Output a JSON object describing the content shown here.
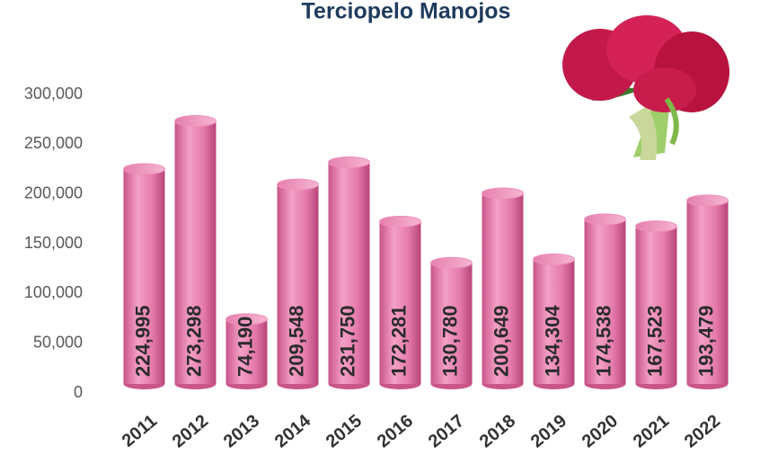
{
  "chart_data": {
    "type": "bar",
    "title": "Terciopelo Manojos",
    "categories": [
      "2011",
      "2012",
      "2013",
      "2014",
      "2015",
      "2016",
      "2017",
      "2018",
      "2019",
      "2020",
      "2021",
      "2022"
    ],
    "values": [
      224995,
      273298,
      74190,
      209548,
      231750,
      172281,
      130780,
      200649,
      134304,
      174538,
      167523,
      193479
    ],
    "value_labels": [
      "224,995",
      "273,298",
      "74,190",
      "209,548",
      "231,750",
      "172,281",
      "130,780",
      "200,649",
      "134,304",
      "174,538",
      "167,523",
      "193,479"
    ],
    "color": "#ee8fbb",
    "ylim": [
      0,
      300000
    ],
    "yticks": [
      0,
      {
        "value": 50000,
        "label": "50,000"
      },
      {
        "value": 100000,
        "label": "100,000"
      },
      {
        "value": 150000,
        "label": "150,000"
      },
      {
        "value": 200000,
        "label": "200,000"
      },
      {
        "value": 250000,
        "label": "250,000"
      },
      {
        "value": 300000,
        "label": "300,000"
      }
    ],
    "grid": false
  }
}
